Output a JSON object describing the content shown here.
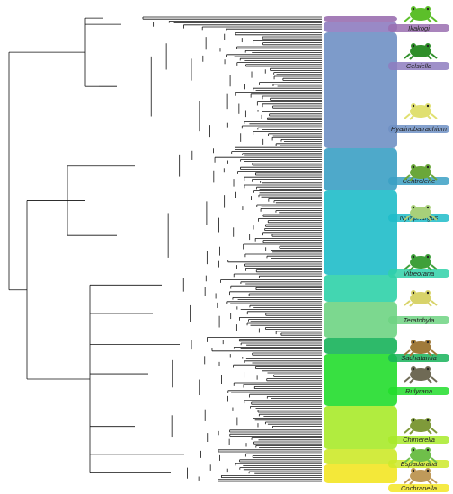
{
  "figure": {
    "clades": [
      {
        "name": "Ikakogi",
        "color": "#9a6fb0"
      },
      {
        "name": "Celsiella",
        "color": "#8e7cc0"
      },
      {
        "name": "Hyalinobatrachium",
        "color": "#6f90c4"
      },
      {
        "name": "Centrolene",
        "color": "#3ba0c4"
      },
      {
        "name": "Nymphargus",
        "color": "#1fbcc9"
      },
      {
        "name": "Vitreorana",
        "color": "#2fd1a8"
      },
      {
        "name": "Teratohyla",
        "color": "#6ed483"
      },
      {
        "name": "Sachatamia",
        "color": "#17b35a"
      },
      {
        "name": "Rulyrana",
        "color": "#22dd2c"
      },
      {
        "name": "Chimerella",
        "color": "#a8ea2a"
      },
      {
        "name": "Espadarana",
        "color": "#cde92a"
      },
      {
        "name": "Cochranella",
        "color": "#f3e623"
      }
    ],
    "frog_icons": [
      "frog-icon-green",
      "frog-icon-dark-green",
      "frog-icon-yellow",
      "frog-icon-mottled",
      "frog-icon-translucent",
      "frog-icon-brown"
    ]
  }
}
